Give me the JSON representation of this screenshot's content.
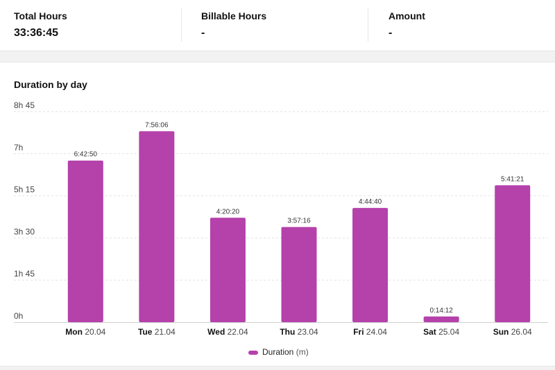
{
  "summary": {
    "total_hours": {
      "label": "Total Hours",
      "value": "33:36:45"
    },
    "billable_hours": {
      "label": "Billable Hours",
      "value": "-"
    },
    "amount": {
      "label": "Amount",
      "value": "-"
    }
  },
  "chart_title": "Duration by day",
  "chart_data": {
    "type": "bar",
    "title": "Duration by day",
    "categories": [
      {
        "day": "Mon",
        "date": "20.04"
      },
      {
        "day": "Tue",
        "date": "21.04"
      },
      {
        "day": "Wed",
        "date": "22.04"
      },
      {
        "day": "Thu",
        "date": "23.04"
      },
      {
        "day": "Fri",
        "date": "24.04"
      },
      {
        "day": "Sat",
        "date": "25.04"
      },
      {
        "day": "Sun",
        "date": "26.04"
      }
    ],
    "series": [
      {
        "name": "Duration",
        "unit": "(m)",
        "color": "#b541aa",
        "values_minutes": [
          402.83,
          476.1,
          260.33,
          237.27,
          284.67,
          14.2,
          341.35
        ],
        "labels": [
          "6:42:50",
          "7:56:06",
          "4:20:20",
          "3:57:16",
          "4:44:40",
          "0:14:12",
          "5:41:21"
        ]
      }
    ],
    "yticks": [
      {
        "value": 0,
        "label": "0h"
      },
      {
        "value": 105,
        "label": "1h 45"
      },
      {
        "value": 210,
        "label": "3h 30"
      },
      {
        "value": 315,
        "label": "5h 15"
      },
      {
        "value": 420,
        "label": "7h"
      },
      {
        "value": 525,
        "label": "8h 45"
      }
    ],
    "ylim": [
      0,
      525
    ],
    "grid": true,
    "legend": "bottom-center"
  }
}
